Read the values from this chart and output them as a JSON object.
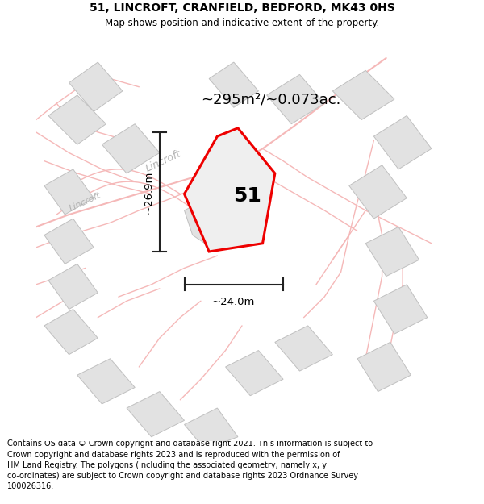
{
  "title_line1": "51, LINCROFT, CRANFIELD, BEDFORD, MK43 0HS",
  "title_line2": "Map shows position and indicative extent of the property.",
  "footer_text": "Contains OS data © Crown copyright and database right 2021. This information is subject to Crown copyright and database rights 2023 and is reproduced with the permission of HM Land Registry. The polygons (including the associated geometry, namely x, y co-ordinates) are subject to Crown copyright and database rights 2023 Ordnance Survey 100026316.",
  "area_label": "~295m²/~0.073ac.",
  "number_label": "51",
  "width_label": "~24.0m",
  "height_label": "~26.9m",
  "road_label_diag": "Lincroft",
  "road_label_horiz": "Lincroft",
  "map_bg": "#ffffff",
  "building_fill": "#e2e2e2",
  "building_edge": "#c0c0c0",
  "road_pink": "#f5b8b8",
  "property_edge_color": "#ee0000",
  "property_fill": "#efefef",
  "dim_color": "#222222",
  "area_label_fontsize": 13,
  "number_fontsize": 18,
  "dim_fontsize": 9.5,
  "road_fontsize": 9,
  "title_fontsize": 10,
  "subtitle_fontsize": 8.5,
  "footer_fontsize": 7.0,
  "prop_verts_x": [
    44,
    49,
    58,
    55,
    42,
    36
  ],
  "prop_verts_y": [
    74,
    76,
    65,
    48,
    46,
    60
  ]
}
